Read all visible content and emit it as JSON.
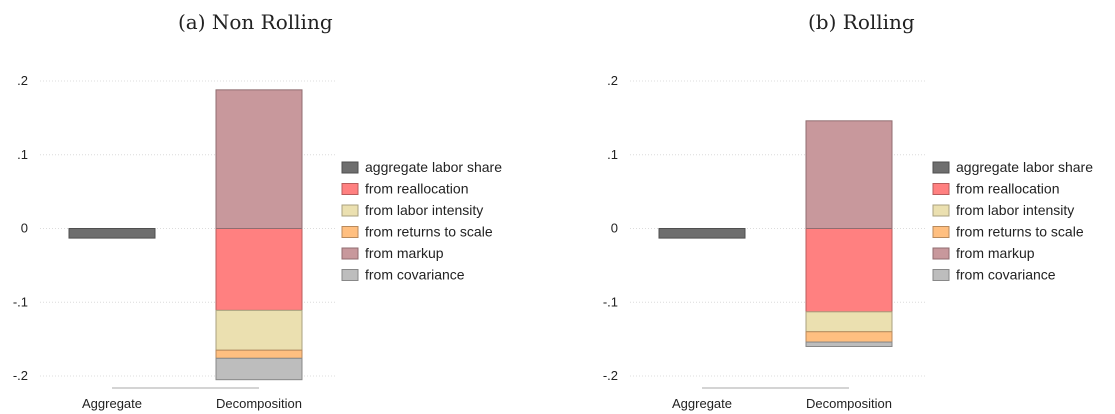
{
  "chart_data": [
    {
      "type": "bar",
      "subtitle": "(a) Non Rolling",
      "categories": [
        "Aggregate",
        "Decomposition"
      ],
      "ylim": [
        -0.2,
        0.2
      ],
      "yticks": [
        0.2,
        0.1,
        0,
        -0.1,
        -0.2
      ],
      "ytick_labels": [
        ".2",
        ".1",
        "0",
        "-.1",
        "-.2"
      ],
      "grid": true,
      "legend_position": "right",
      "series": [
        {
          "name": "aggregate labor share",
          "category": "Aggregate",
          "from": 0,
          "to": -0.013,
          "color": "#6e6e6e"
        },
        {
          "name": "from reallocation",
          "category": "Decomposition",
          "from": 0,
          "to": -0.111,
          "color": "#ff8080"
        },
        {
          "name": "from labor intensity",
          "category": "Decomposition",
          "from": -0.111,
          "to": -0.165,
          "color": "#ebe0b0"
        },
        {
          "name": "from returns to scale",
          "category": "Decomposition",
          "from": -0.165,
          "to": -0.176,
          "color": "#ffbf80"
        },
        {
          "name": "from markup",
          "category": "Decomposition",
          "from": 0,
          "to": 0.188,
          "color": "#c8989c"
        },
        {
          "name": "from covariance",
          "category": "Decomposition",
          "from": -0.176,
          "to": -0.205,
          "color": "#bdbdbd"
        }
      ]
    },
    {
      "type": "bar",
      "subtitle": "(b) Rolling",
      "categories": [
        "Aggregate",
        "Decomposition"
      ],
      "ylim": [
        -0.2,
        0.2
      ],
      "yticks": [
        0.2,
        0.1,
        0,
        -0.1,
        -0.2
      ],
      "ytick_labels": [
        ".2",
        ".1",
        "0",
        "-.1",
        "-.2"
      ],
      "grid": true,
      "legend_position": "right",
      "series": [
        {
          "name": "aggregate labor share",
          "category": "Aggregate",
          "from": 0,
          "to": -0.013,
          "color": "#6e6e6e"
        },
        {
          "name": "from reallocation",
          "category": "Decomposition",
          "from": 0,
          "to": -0.113,
          "color": "#ff8080"
        },
        {
          "name": "from labor intensity",
          "category": "Decomposition",
          "from": -0.113,
          "to": -0.14,
          "color": "#ebe0b0"
        },
        {
          "name": "from returns to scale",
          "category": "Decomposition",
          "from": -0.14,
          "to": -0.154,
          "color": "#ffbf80"
        },
        {
          "name": "from markup",
          "category": "Decomposition",
          "from": 0,
          "to": 0.146,
          "color": "#c8989c"
        },
        {
          "name": "from covariance",
          "category": "Decomposition",
          "from": -0.154,
          "to": -0.16,
          "color": "#bdbdbd"
        }
      ]
    }
  ]
}
